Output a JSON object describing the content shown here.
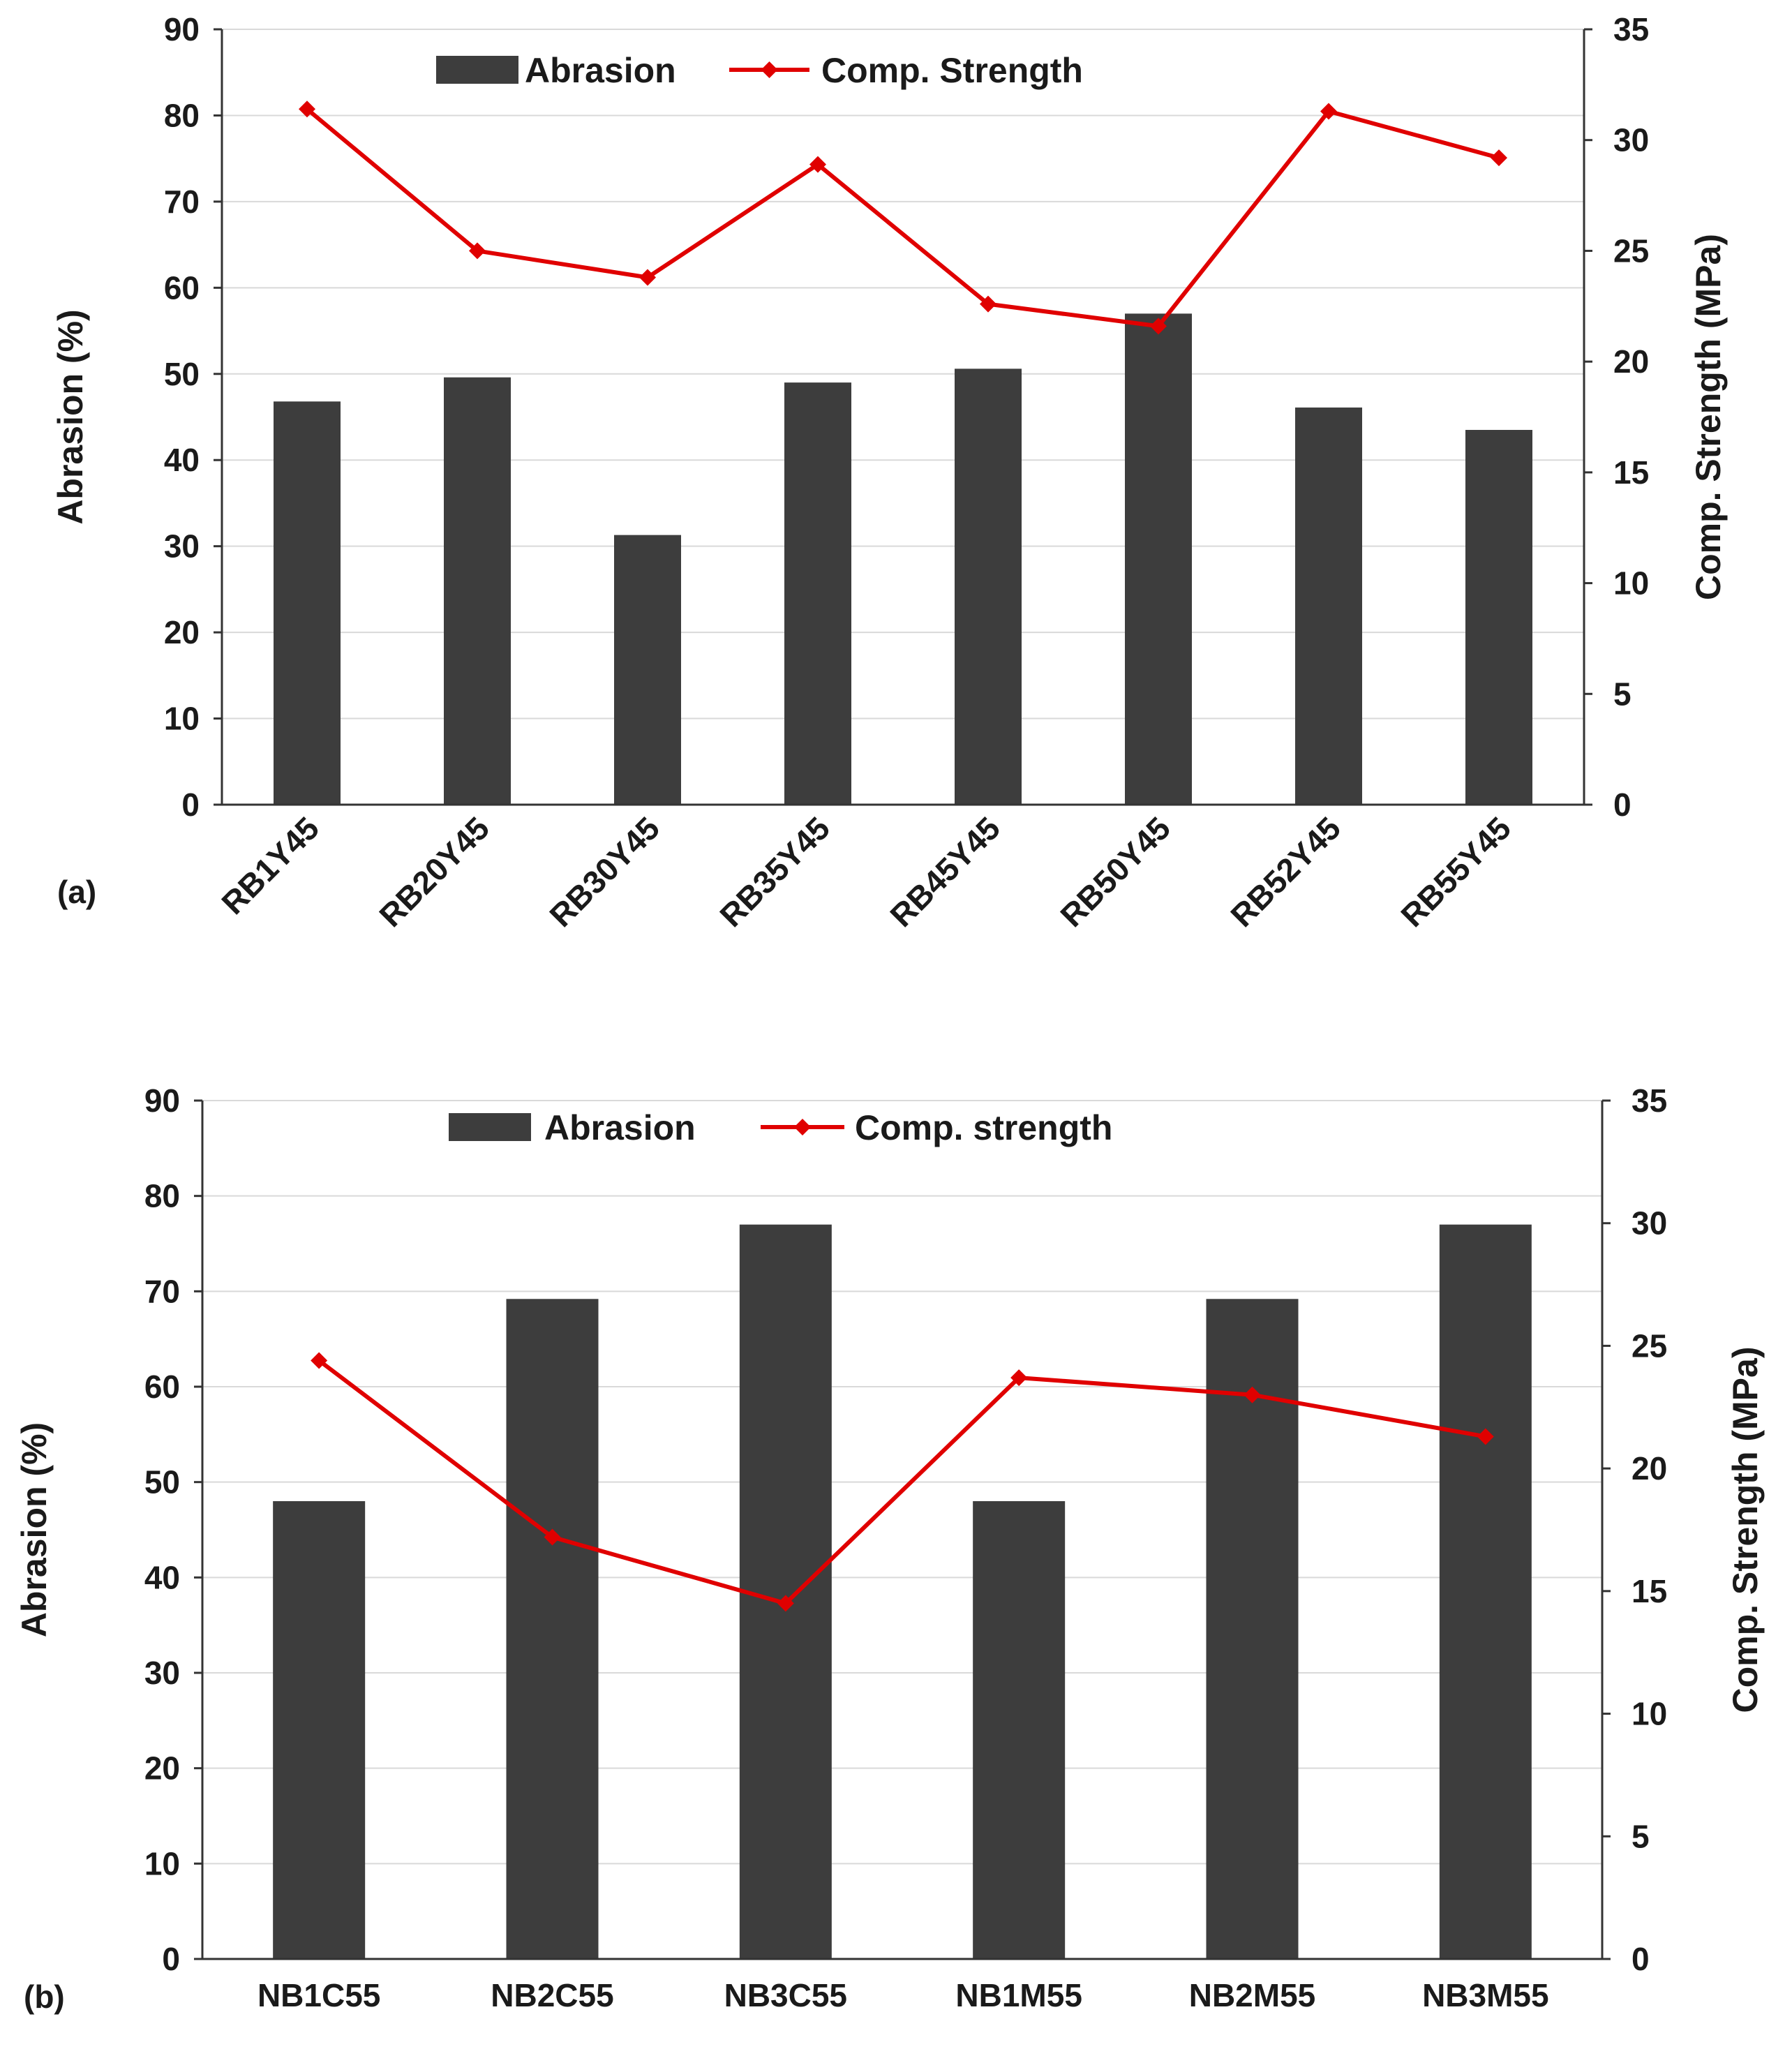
{
  "chart_data": [
    {
      "type": "bar+line",
      "panel_label": "(a)",
      "categories": [
        "RB1Y45",
        "RB20Y45",
        "RB30Y45",
        "RB35Y45",
        "RB45Y45",
        "RB50Y45",
        "RB52Y45",
        "RB55Y45"
      ],
      "series": [
        {
          "name": "Abrasion",
          "type": "bar",
          "axis": "left",
          "color": "#3d3d3d",
          "values": [
            46.8,
            49.6,
            31.3,
            49.0,
            50.6,
            57.0,
            46.1,
            43.5
          ]
        },
        {
          "name": "Comp. Strength",
          "type": "line",
          "axis": "right",
          "color": "#e00000",
          "values": [
            31.4,
            25.0,
            23.8,
            28.9,
            22.6,
            21.6,
            31.3,
            29.2
          ]
        }
      ],
      "ylabel_left": "Abrasion (%)",
      "ylabel_right": "Comp. Strength (MPa)",
      "ylim_left": [
        0,
        90
      ],
      "yticks_left": [
        0,
        10,
        20,
        30,
        40,
        50,
        60,
        70,
        80,
        90
      ],
      "ylim_right": [
        0,
        35
      ],
      "yticks_right": [
        0,
        5,
        10,
        15,
        20,
        25,
        30,
        35
      ],
      "xtick_rotation": "rotated",
      "grid": true,
      "legend_position": "top-center"
    },
    {
      "type": "bar+line",
      "panel_label": "(b)",
      "categories": [
        "NB1C55",
        "NB2C55",
        "NB3C55",
        "NB1M55",
        "NB2M55",
        "NB3M55"
      ],
      "series": [
        {
          "name": "Abrasion",
          "type": "bar",
          "axis": "left",
          "color": "#3d3d3d",
          "values": [
            48.0,
            69.2,
            77.0,
            48.0,
            69.2,
            77.0
          ]
        },
        {
          "name": "Comp. strength",
          "type": "line",
          "axis": "right",
          "color": "#e00000",
          "values": [
            24.4,
            17.2,
            14.5,
            23.7,
            23.0,
            21.3
          ]
        }
      ],
      "ylabel_left": "Abrasion (%)",
      "ylabel_right": "Comp. Strength (MPa)",
      "ylim_left": [
        0,
        90
      ],
      "yticks_left": [
        0,
        10,
        20,
        30,
        40,
        50,
        60,
        70,
        80,
        90
      ],
      "ylim_right": [
        0,
        35
      ],
      "yticks_right": [
        0,
        5,
        10,
        15,
        20,
        25,
        30,
        35
      ],
      "xtick_rotation": "horizontal",
      "grid": true,
      "legend_position": "top-center"
    }
  ]
}
